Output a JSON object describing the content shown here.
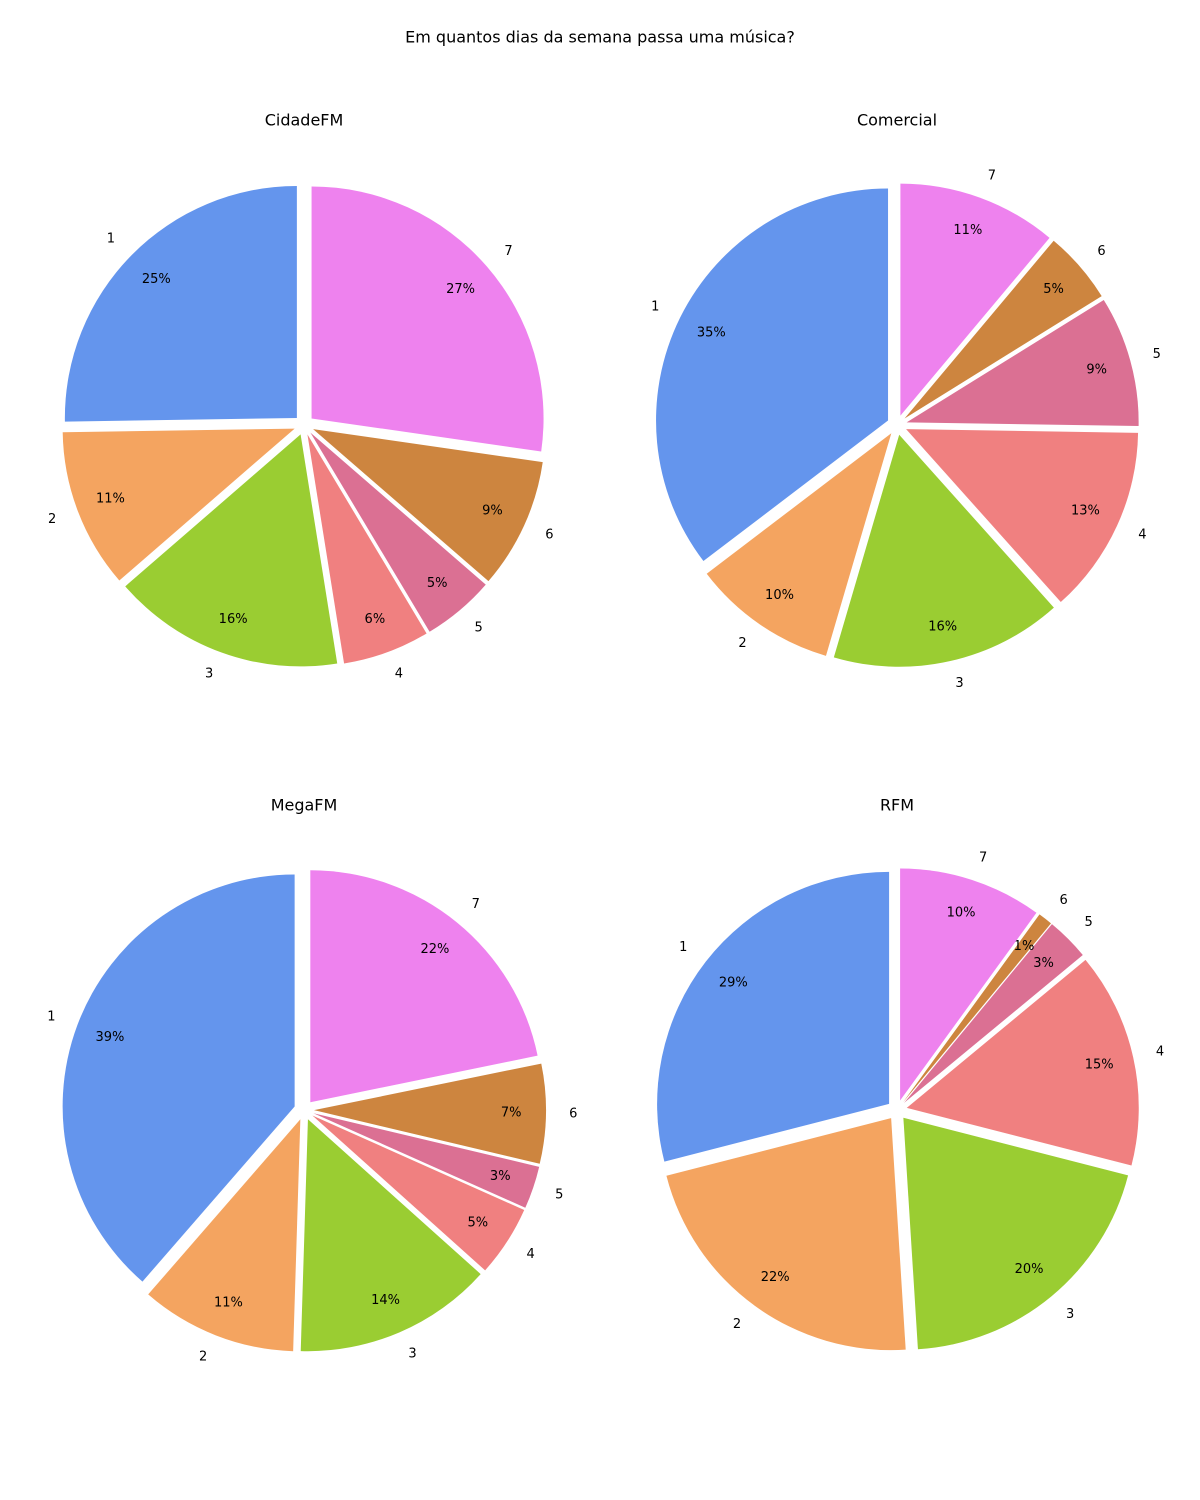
{
  "title": "Em quantos dias da semana passa uma música?",
  "chart_data": [
    {
      "type": "pie",
      "title": "CidadeFM",
      "categories": [
        "1",
        "2",
        "3",
        "4",
        "5",
        "6",
        "7"
      ],
      "values": [
        25,
        11,
        16,
        6,
        5,
        9,
        27
      ],
      "value_labels": [
        "25%",
        "11%",
        "16%",
        "6%",
        "5%",
        "9%",
        "27%"
      ],
      "colors": [
        "#6495ed",
        "#f4a460",
        "#9acd32",
        "#f08080",
        "#db7093",
        "#cd853f",
        "#ee82ee"
      ]
    },
    {
      "type": "pie",
      "title": "Comercial",
      "categories": [
        "1",
        "2",
        "3",
        "4",
        "5",
        "6",
        "7"
      ],
      "values": [
        35,
        10,
        16,
        13,
        9,
        5,
        11
      ],
      "value_labels": [
        "35%",
        "10%",
        "16%",
        "13%",
        "9%",
        "5%",
        "11%"
      ],
      "colors": [
        "#6495ed",
        "#f4a460",
        "#9acd32",
        "#f08080",
        "#db7093",
        "#cd853f",
        "#ee82ee"
      ]
    },
    {
      "type": "pie",
      "title": "MegaFM",
      "categories": [
        "1",
        "2",
        "3",
        "4",
        "5",
        "6",
        "7"
      ],
      "values": [
        39,
        11,
        14,
        5,
        3,
        7,
        22
      ],
      "value_labels": [
        "39%",
        "11%",
        "14%",
        "5%",
        "3%",
        "7%",
        "22%"
      ],
      "colors": [
        "#6495ed",
        "#f4a460",
        "#9acd32",
        "#f08080",
        "#db7093",
        "#cd853f",
        "#ee82ee"
      ]
    },
    {
      "type": "pie",
      "title": "RFM",
      "categories": [
        "1",
        "2",
        "3",
        "4",
        "5",
        "6",
        "7"
      ],
      "values": [
        29,
        22,
        20,
        15,
        3,
        1,
        10
      ],
      "value_labels": [
        "29%",
        "22%",
        "20%",
        "15%",
        "3%",
        "1%",
        "10%"
      ],
      "colors": [
        "#6495ed",
        "#f4a460",
        "#9acd32",
        "#f08080",
        "#db7093",
        "#cd853f",
        "#ee82ee"
      ]
    }
  ]
}
